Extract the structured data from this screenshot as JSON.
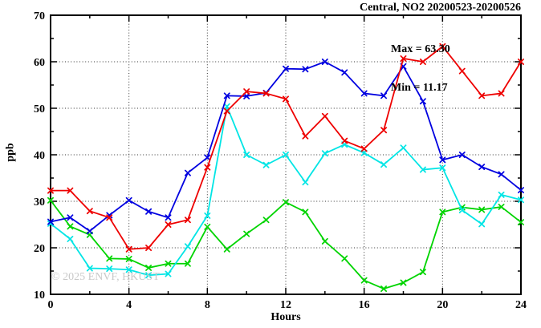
{
  "header": {
    "title": "Central, NO2 20200523-20200526"
  },
  "annotations": {
    "max_label": "Max = 63.30",
    "min_label": "Min = 11.17"
  },
  "watermark": "© 2025 ENVF, HKUST",
  "chart_data": {
    "type": "line",
    "title": "Central, NO2 20200523-20200526",
    "xlabel": "Hours",
    "ylabel": "ppb",
    "xlim": [
      0,
      24
    ],
    "ylim": [
      10,
      70
    ],
    "grid": "dotted",
    "legend_position": "none",
    "stat_max": 63.3,
    "stat_min": 11.17,
    "x": [
      0,
      1,
      2,
      3,
      4,
      5,
      6,
      7,
      8,
      9,
      10,
      11,
      12,
      13,
      14,
      15,
      16,
      17,
      18,
      19,
      20,
      21,
      22,
      23,
      24
    ],
    "xticks_major": [
      0,
      4,
      8,
      12,
      16,
      20,
      24
    ],
    "xtick_labels": [
      "0",
      "4",
      "8",
      "12",
      "16",
      "20",
      "24"
    ],
    "xticks_minor": [
      2,
      6,
      10,
      14,
      18,
      22
    ],
    "yticks_major": [
      10,
      20,
      30,
      40,
      50,
      60,
      70
    ],
    "ytick_labels": [
      "10",
      "20",
      "30",
      "40",
      "50",
      "60",
      "70"
    ],
    "yticks_minor": [
      15,
      25,
      35,
      45,
      55,
      65
    ],
    "xgrid": [
      4,
      8,
      12,
      16,
      20
    ],
    "ygrid": [
      20,
      30,
      40,
      50,
      60
    ],
    "series": [
      {
        "name": "green",
        "color": "#00d400",
        "values": [
          30.2,
          24.6,
          22.8,
          17.7,
          17.6,
          15.7,
          16.6,
          16.6,
          24.5,
          19.7,
          23.0,
          26.0,
          29.8,
          27.7,
          21.4,
          17.7,
          13.0,
          11.2,
          12.5,
          14.8,
          27.7,
          28.7,
          28.2,
          28.8,
          25.5
        ]
      },
      {
        "name": "cyan",
        "color": "#00e5e5",
        "values": [
          25.2,
          21.9,
          15.6,
          15.5,
          15.3,
          14.1,
          14.4,
          20.3,
          26.9,
          50.4,
          40.0,
          37.8,
          40.0,
          34.1,
          40.3,
          42.2,
          40.4,
          37.9,
          41.5,
          36.8,
          37.2,
          28.1,
          25.1,
          31.4,
          30.3
        ]
      },
      {
        "name": "blue",
        "color": "#0000e0",
        "values": [
          25.6,
          26.5,
          23.6,
          27.0,
          30.2,
          27.8,
          26.5,
          36.1,
          39.4,
          52.7,
          52.6,
          53.3,
          58.5,
          58.4,
          60.0,
          57.7,
          53.2,
          52.7,
          59.0,
          51.5,
          38.9,
          40.0,
          37.4,
          35.8,
          32.4
        ]
      },
      {
        "name": "red",
        "color": "#ee0000",
        "values": [
          32.3,
          32.3,
          27.9,
          26.5,
          19.7,
          20.0,
          25.0,
          26.0,
          37.3,
          49.4,
          53.6,
          53.2,
          52.0,
          44.0,
          48.3,
          43.0,
          41.3,
          45.3,
          60.7,
          60.0,
          63.3,
          58.0,
          52.7,
          53.2,
          60.0
        ]
      }
    ]
  }
}
